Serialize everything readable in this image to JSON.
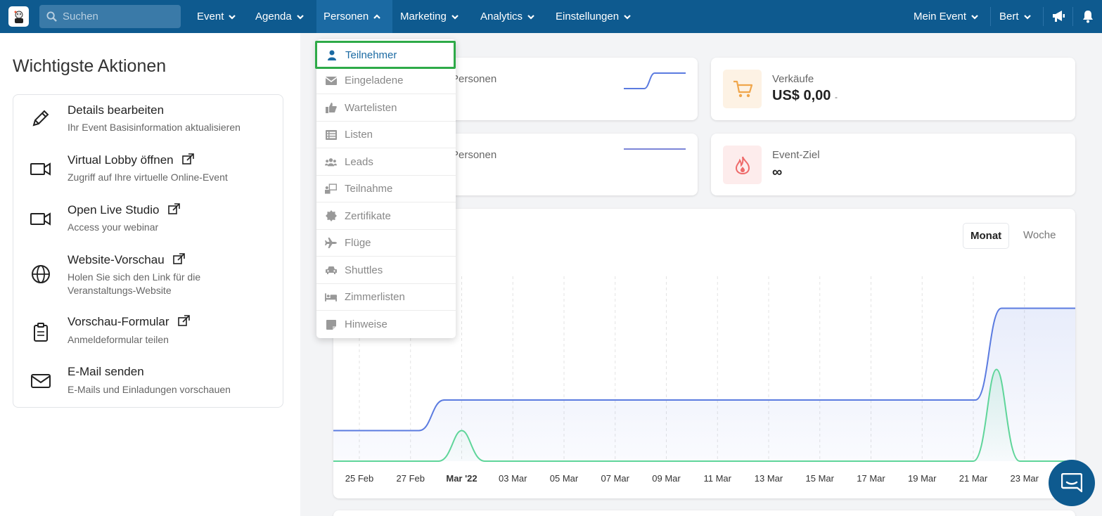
{
  "nav": {
    "search_placeholder": "Suchen",
    "items": [
      {
        "label": "Event"
      },
      {
        "label": "Agenda"
      },
      {
        "label": "Personen"
      },
      {
        "label": "Marketing"
      },
      {
        "label": "Analytics"
      },
      {
        "label": "Einstellungen"
      }
    ],
    "right": {
      "event_label": "Mein Event",
      "user_label": "Bert"
    }
  },
  "dropdown": {
    "items": [
      {
        "label": "Teilnehmer",
        "icon": "user-icon"
      },
      {
        "label": "Eingeladene",
        "icon": "envelope-icon"
      },
      {
        "label": "Wartelisten",
        "icon": "thumbs-up-icon"
      },
      {
        "label": "Listen",
        "icon": "list-icon"
      },
      {
        "label": "Leads",
        "icon": "users-icon"
      },
      {
        "label": "Teilnahme",
        "icon": "presentation-icon"
      },
      {
        "label": "Zertifikate",
        "icon": "certificate-icon"
      },
      {
        "label": "Flüge",
        "icon": "plane-icon"
      },
      {
        "label": "Shuttles",
        "icon": "car-icon"
      },
      {
        "label": "Zimmerlisten",
        "icon": "bed-icon"
      },
      {
        "label": "Hinweise",
        "icon": "note-icon"
      }
    ]
  },
  "left": {
    "title": "Wichtigste Aktionen",
    "actions": [
      {
        "title": "Details bearbeiten",
        "subtitle": "Ihr Event Basisinformation aktualisieren"
      },
      {
        "title": "Virtual Lobby öffnen",
        "subtitle": "Zugriff auf Ihre virtuelle Online-Event"
      },
      {
        "title": "Open Live Studio",
        "subtitle": "Access your webinar"
      },
      {
        "title": "Website-Vorschau",
        "subtitle": "Holen Sie sich den Link für die Veranstaltungs-Website"
      },
      {
        "title": "Vorschau-Formular",
        "subtitle": "Anmeldeformular teilen"
      },
      {
        "title": "E-Mail senden",
        "subtitle": "E-Mails und Einladungen vorschauen"
      }
    ]
  },
  "stats": {
    "card1_label": "Personen",
    "card2_label": "Personen",
    "sales_label": "Verkäufe",
    "sales_value": "US$ 0,00",
    "sales_delta": "-",
    "goal_label": "Event-Ziel",
    "goal_value": "∞"
  },
  "chart": {
    "toggle_month": "Monat",
    "toggle_week": "Woche",
    "colors": {
      "blue": "#5b7be0",
      "green": "#5fd59a"
    }
  },
  "chart_data": {
    "type": "area",
    "x": [
      "25 Feb",
      "27 Feb",
      "Mar '22",
      "03 Mar",
      "05 Mar",
      "07 Mar",
      "09 Mar",
      "11 Mar",
      "13 Mar",
      "15 Mar",
      "17 Mar",
      "19 Mar",
      "21 Mar",
      "23 Mar"
    ],
    "series": [
      {
        "values": [
          1,
          1,
          2,
          2,
          2,
          2,
          2,
          2,
          2,
          2,
          2,
          2,
          2,
          5
        ]
      },
      {
        "values": [
          0,
          0,
          1,
          0,
          0,
          0,
          0,
          0,
          0,
          0,
          0,
          0,
          0,
          3
        ]
      }
    ],
    "grid": true
  }
}
